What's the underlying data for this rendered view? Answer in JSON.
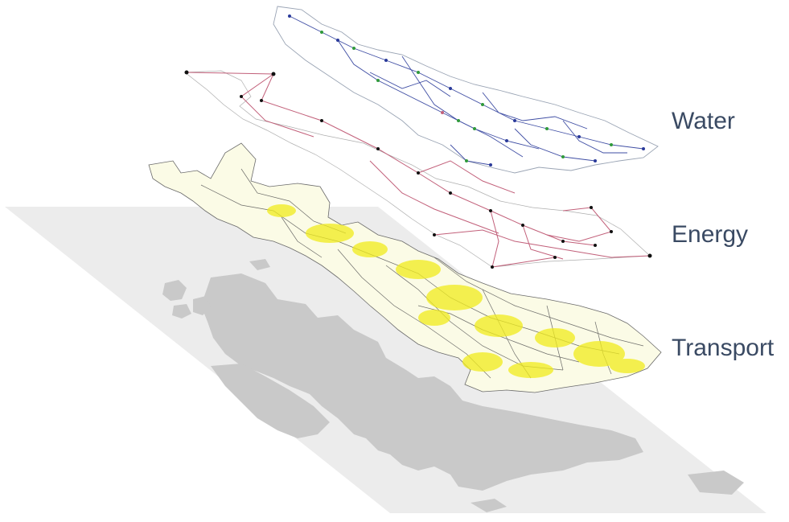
{
  "layers": [
    {
      "id": "water",
      "label": "Water"
    },
    {
      "id": "energy",
      "label": "Energy"
    },
    {
      "id": "transport",
      "label": "Transport"
    }
  ],
  "colors": {
    "base_plane": "#ececec",
    "landmass": "#c9c9c9",
    "water_network": "#2a3a9a",
    "water_accent": "#2f9a3a",
    "water_outline": "#9aa4b4",
    "energy_network": "#c2607a",
    "energy_nodes": "#111111",
    "energy_outline": "#9a9a9a",
    "transport_network": "#e6e21a",
    "transport_roads": "#555555",
    "label_text": "#3a4a63"
  }
}
